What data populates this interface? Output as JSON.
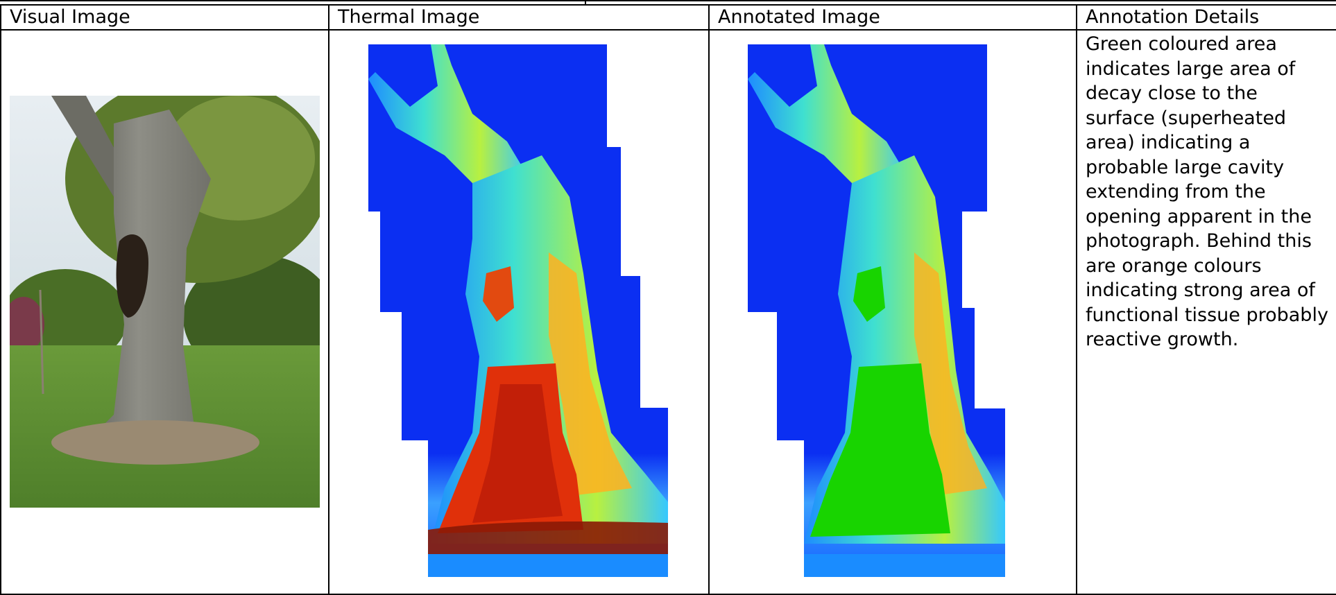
{
  "table": {
    "headers": [
      "Visual Image",
      "Thermal Image",
      "Annotated Image",
      "Annotation Details"
    ],
    "annotation_text": "Green coloured area indicates large area of decay close to the surface (superheated area) indicating a probable large cavity extending from the opening apparent in the photograph. Behind this are orange colours indicating strong area of functional tissue probably reactive growth."
  },
  "colors": {
    "background_blue": "#0b2ff2",
    "decay_green": "#18d400",
    "hot_red": "#e0300a",
    "warm_orange": "#ff8a14",
    "cool_cyan": "#37c8ff",
    "grass": "#5f8f36",
    "foliage": "#4f6f28"
  },
  "images": [
    {
      "name": "visual-photo",
      "subject": "tree-trunk-photograph"
    },
    {
      "name": "thermal-image",
      "subject": "thermal-scan-of-trunk"
    },
    {
      "name": "annotated-thermal-image",
      "subject": "annotated-thermal-scan"
    }
  ]
}
